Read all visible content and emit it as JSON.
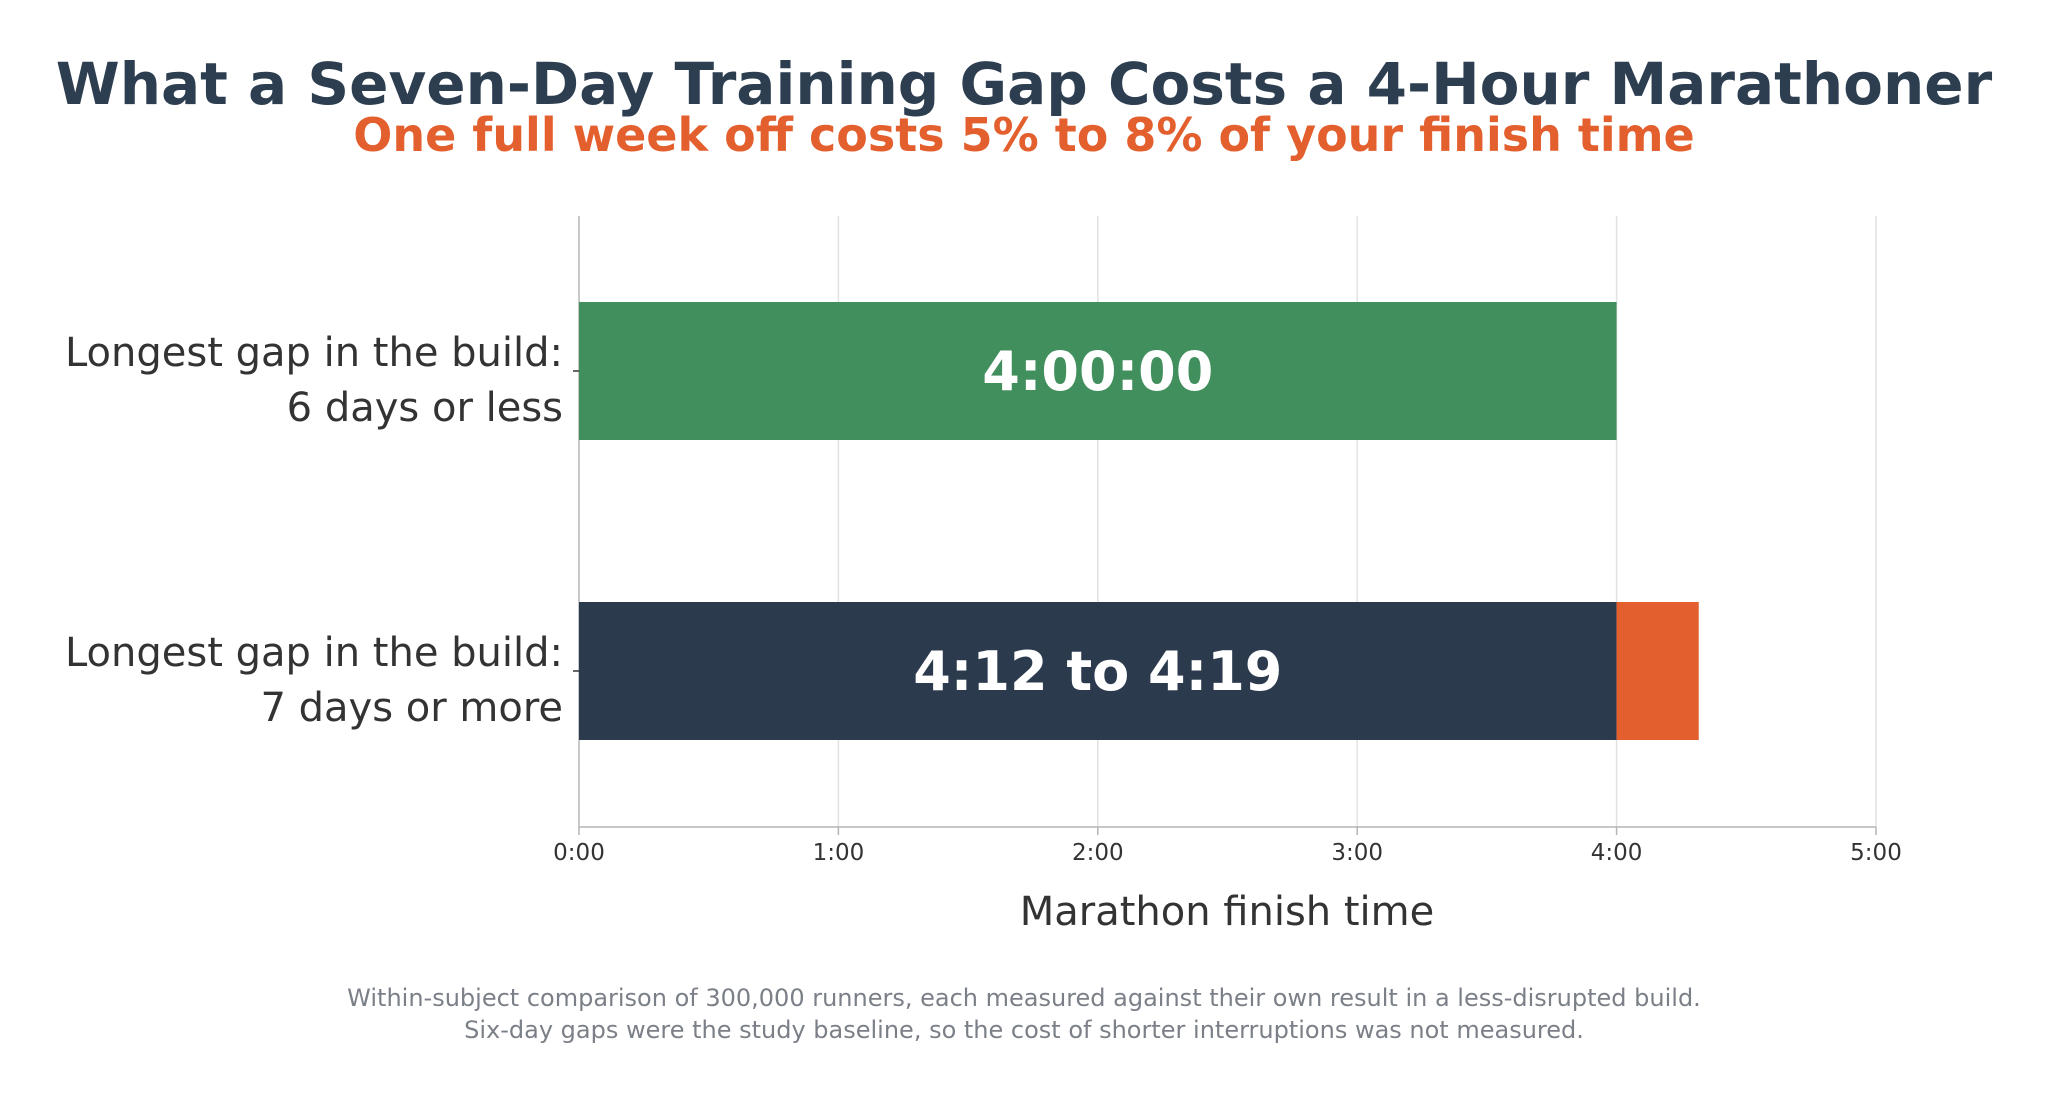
{
  "title": "What a Seven-Day Training Gap Costs a 4-Hour Marathoner",
  "subtitle": "One full week off costs 5% to 8% of your finish time",
  "footnote": [
    "Within-subject comparison of 300,000 runners, each measured against their own result in a less-disrupted build.",
    "Six-day gaps were the study baseline, so the cost of shorter interruptions was not measured."
  ],
  "colors": {
    "title": "#2c3e50",
    "subtitle": "#e35f2d",
    "baseline_bar": "#428f5e",
    "gap_bar": "#2c3a4d",
    "cost_bar": "#e35f2d",
    "bar_text": "#ffffff"
  },
  "chart_data": {
    "type": "bar",
    "orientation": "horizontal",
    "stacked": true,
    "categories": [
      [
        "Longest gap in the build:",
        "6 days or less"
      ],
      [
        "Longest gap in the build:",
        "7 days or more"
      ]
    ],
    "series": [
      {
        "values_minutes": [
          240,
          240
        ],
        "colors": [
          "#428f5e",
          "#2c3a4d"
        ]
      },
      {
        "values_minutes": [
          0,
          19
        ],
        "colors": [
          "#e35f2d",
          "#e35f2d"
        ]
      }
    ],
    "data_labels": [
      "4:00:00",
      "4:12 to 4:19"
    ],
    "xlabel": "Marathon finish time",
    "ylabel": "",
    "xlim_minutes": [
      0,
      300
    ],
    "xticks": [
      {
        "value": 0,
        "label": "0:00"
      },
      {
        "value": 60,
        "label": "1:00"
      },
      {
        "value": 120,
        "label": "2:00"
      },
      {
        "value": 180,
        "label": "3:00"
      },
      {
        "value": 240,
        "label": "4:00"
      },
      {
        "value": 300,
        "label": "5:00"
      }
    ],
    "grid": "x",
    "legend": "none"
  }
}
